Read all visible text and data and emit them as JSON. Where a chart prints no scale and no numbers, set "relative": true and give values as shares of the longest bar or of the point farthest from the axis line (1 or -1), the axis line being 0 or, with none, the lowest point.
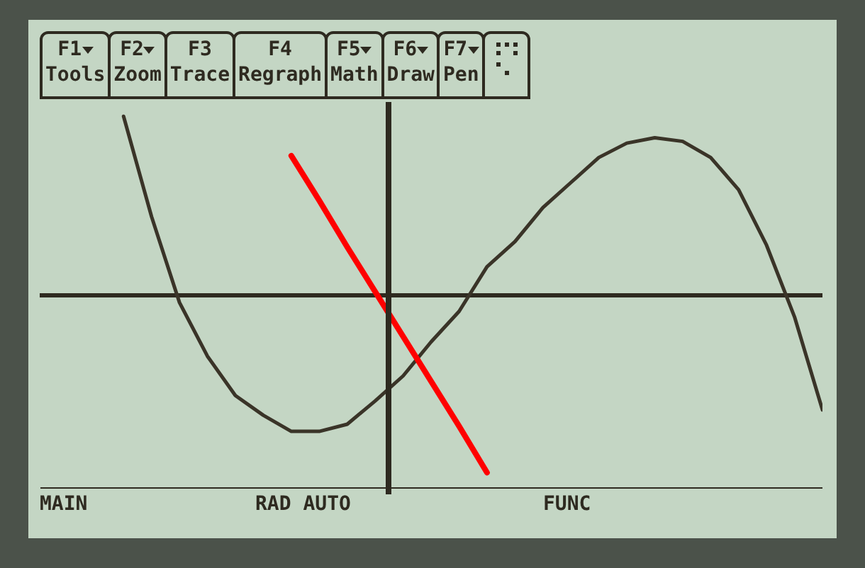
{
  "chart_data": {
    "type": "line",
    "relative": true,
    "categories": [
      null,
      null,
      null,
      null,
      null,
      null,
      null,
      null,
      null,
      null,
      null,
      null,
      null,
      null,
      null,
      null,
      null,
      null,
      null,
      null,
      null,
      null,
      null,
      null,
      null,
      null,
      null,
      null,
      null
    ],
    "series": [
      {
        "color": "#3a3428",
        "values": [
          null,
          null,
          null,
          1,
          0.44,
          -0.04,
          -0.34,
          -0.56,
          -0.67,
          -0.76,
          -0.76,
          -0.72,
          -0.59,
          -0.45,
          -0.26,
          -0.09,
          0.16,
          0.3,
          0.49,
          0.63,
          0.77,
          0.85,
          0.88,
          0.86,
          0.77,
          0.59,
          0.28,
          -0.12,
          -0.64
        ]
      },
      {
        "color": "#ff0000",
        "values": [
          null,
          null,
          null,
          null,
          null,
          null,
          null,
          null,
          null,
          0.78,
          0.53,
          0.27,
          0.02,
          -0.23,
          -0.48,
          -0.73,
          -0.99,
          null,
          null,
          null,
          null,
          null,
          null,
          null,
          null,
          null,
          null,
          null,
          null
        ]
      }
    ],
    "annotations": [
      "F1",
      "Tools",
      "F2",
      "Zoom",
      "F3",
      "Trace",
      "F4",
      "Regraph",
      "F5",
      "Math",
      "F6",
      "Draw",
      "F7",
      "Pen",
      "MAIN",
      "RAD AUTO",
      "FUNC"
    ]
  }
}
